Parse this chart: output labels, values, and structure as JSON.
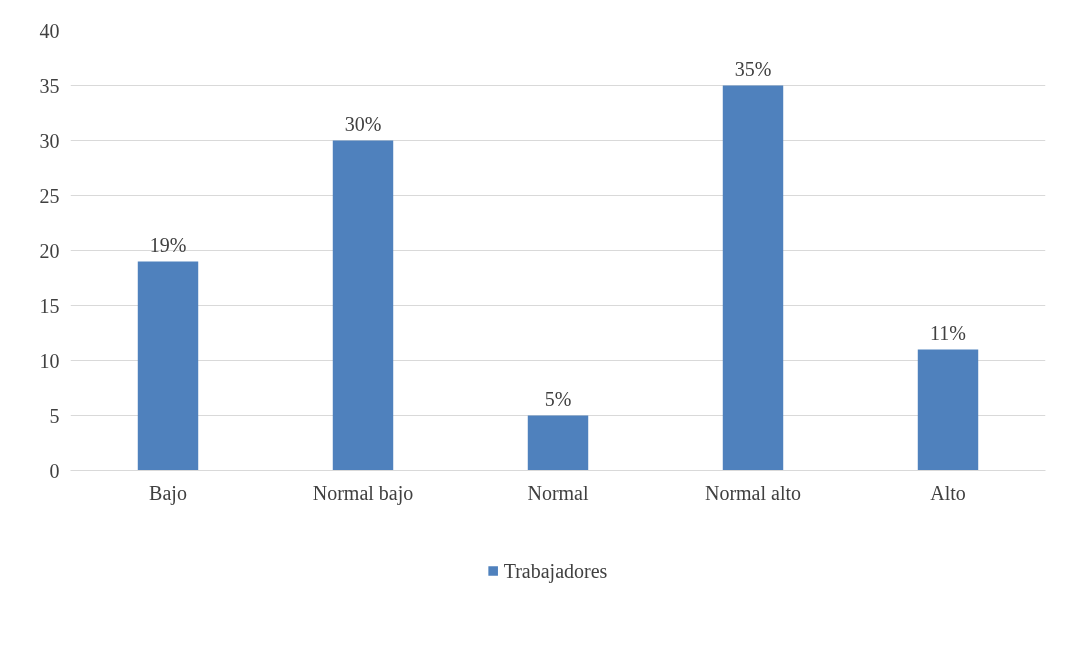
{
  "chart_data": {
    "type": "bar",
    "categories": [
      "Bajo",
      "Normal bajo",
      "Normal",
      "Normal alto",
      "Alto"
    ],
    "series": [
      {
        "name": "Trabajadores",
        "color": "#4f81bd",
        "values": [
          19,
          30,
          5,
          35,
          11
        ],
        "value_labels": [
          "19%",
          "30%",
          "5%",
          "35%",
          "11%"
        ]
      }
    ],
    "ylim": [
      0,
      40
    ],
    "yticks": [
      0,
      5,
      10,
      15,
      20,
      25,
      30,
      35,
      40
    ],
    "grid": "y",
    "legend": "bottom"
  }
}
